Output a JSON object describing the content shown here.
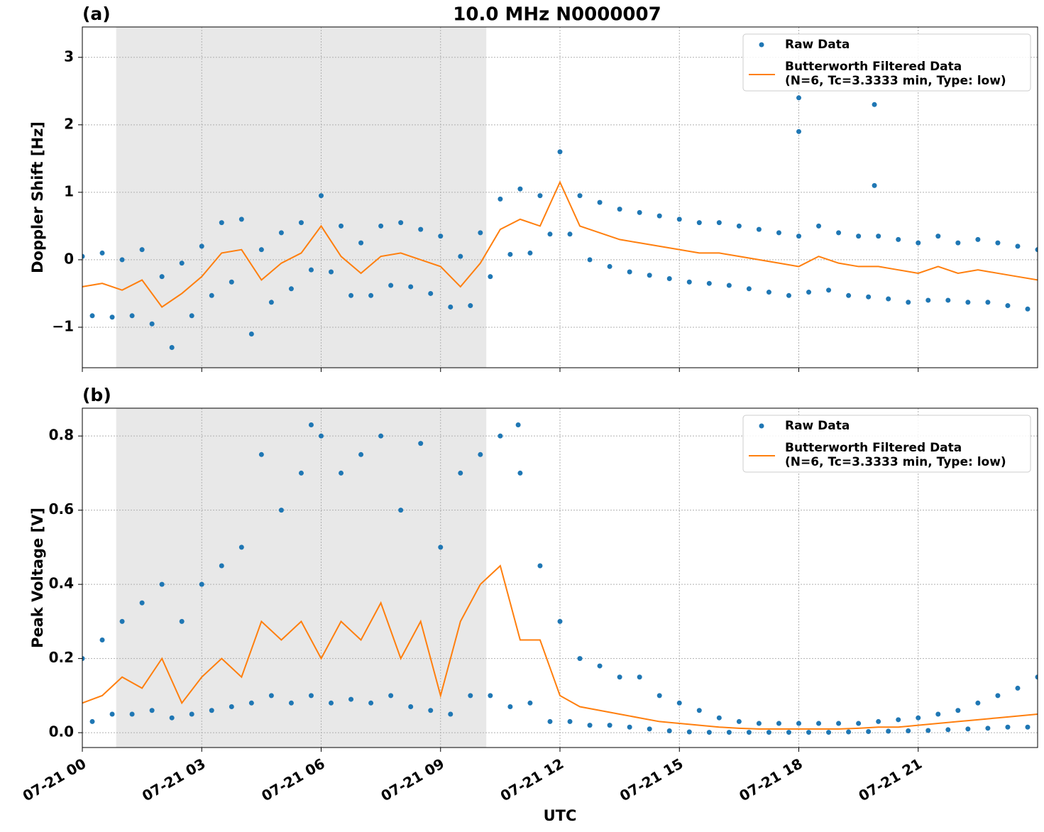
{
  "chart_data": [
    {
      "type": "scatter",
      "label": "(a)",
      "title": "10.0 MHz N0000007",
      "ylabel": "Doppler Shift [Hz]",
      "xlim": [
        0,
        24
      ],
      "ylim": [
        -1.6,
        3.45
      ],
      "yticks": [
        {
          "value": -1,
          "label": "−1"
        },
        0,
        1,
        2,
        3
      ],
      "grid": true,
      "legend": "upper right",
      "shade": [
        0.85,
        10.15
      ],
      "shade_color": "#e8e8e8",
      "legend_note": "(N=6, Tc=3.3333 min, Type: low)",
      "series": [
        {
          "name": "Raw Data",
          "kind": "scatter",
          "color": "#1f77b4",
          "x": [
            0,
            0.25,
            0.5,
            0.75,
            1,
            1.25,
            1.5,
            1.75,
            2,
            2.25,
            2.5,
            2.75,
            3,
            3.25,
            3.5,
            3.75,
            4,
            4.25,
            4.5,
            4.75,
            5,
            5.25,
            5.5,
            5.75,
            6,
            6.25,
            6.5,
            6.75,
            7,
            7.25,
            7.5,
            7.75,
            8,
            8.25,
            8.5,
            8.75,
            9,
            9.25,
            9.5,
            9.75,
            10,
            10.25,
            10.5,
            10.75,
            11,
            11.25,
            11.5,
            11.75,
            12,
            12.25,
            12.5,
            12.75,
            13,
            13.25,
            13.5,
            13.75,
            14,
            14.25,
            14.5,
            14.75,
            15,
            15.25,
            15.5,
            15.75,
            16,
            16.25,
            16.5,
            16.75,
            17,
            17.25,
            17.5,
            17.75,
            18,
            18.25,
            18.5,
            18.75,
            19,
            19.25,
            19.5,
            19.75,
            20,
            20.25,
            20.5,
            20.75,
            21,
            21.25,
            21.5,
            21.75,
            22,
            22.25,
            22.5,
            22.75,
            23,
            23.25,
            23.5,
            23.75,
            24,
            18,
            18,
            19.9,
            19.9
          ],
          "values": [
            0.05,
            -0.83,
            0.1,
            -0.85,
            0.0,
            -0.83,
            0.15,
            -0.95,
            -0.25,
            -1.3,
            -0.05,
            -0.83,
            0.2,
            -0.53,
            0.55,
            -0.33,
            0.6,
            -1.1,
            0.15,
            -0.63,
            0.4,
            -0.43,
            0.55,
            -0.15,
            0.95,
            -0.18,
            0.5,
            -0.53,
            0.25,
            -0.53,
            0.5,
            -0.38,
            0.55,
            -0.4,
            0.45,
            -0.5,
            0.35,
            -0.7,
            0.05,
            -0.68,
            0.4,
            -0.25,
            0.9,
            0.08,
            1.05,
            0.1,
            0.95,
            0.38,
            1.6,
            0.38,
            0.95,
            0.0,
            0.85,
            -0.1,
            0.75,
            -0.18,
            0.7,
            -0.23,
            0.65,
            -0.28,
            0.6,
            -0.33,
            0.55,
            -0.35,
            0.55,
            -0.38,
            0.5,
            -0.43,
            0.45,
            -0.48,
            0.4,
            -0.53,
            0.35,
            -0.48,
            0.5,
            -0.45,
            0.4,
            -0.53,
            0.35,
            -0.55,
            0.35,
            -0.58,
            0.3,
            -0.63,
            0.25,
            -0.6,
            0.35,
            -0.6,
            0.25,
            -0.63,
            0.3,
            -0.63,
            0.25,
            -0.68,
            0.2,
            -0.73,
            0.15,
            2.4,
            1.9,
            2.3,
            1.1
          ]
        },
        {
          "name": "Butterworth Filtered Data",
          "kind": "line",
          "color": "#ff7f0e",
          "x": [
            0,
            0.5,
            1,
            1.5,
            2,
            2.5,
            3,
            3.5,
            4,
            4.5,
            5,
            5.5,
            6,
            6.5,
            7,
            7.5,
            8,
            8.5,
            9,
            9.5,
            10,
            10.5,
            11,
            11.5,
            12,
            12.5,
            13,
            13.5,
            14,
            14.5,
            15,
            15.5,
            16,
            16.5,
            17,
            17.5,
            18,
            18.5,
            19,
            19.5,
            20,
            20.5,
            21,
            21.5,
            22,
            22.5,
            23,
            23.5,
            24
          ],
          "values": [
            -0.4,
            -0.35,
            -0.45,
            -0.3,
            -0.7,
            -0.5,
            -0.25,
            0.1,
            0.15,
            -0.3,
            -0.05,
            0.1,
            0.5,
            0.05,
            -0.2,
            0.05,
            0.1,
            0.0,
            -0.1,
            -0.4,
            -0.05,
            0.45,
            0.6,
            0.5,
            1.15,
            0.5,
            0.4,
            0.3,
            0.25,
            0.2,
            0.15,
            0.1,
            0.1,
            0.05,
            0.0,
            -0.05,
            -0.1,
            0.05,
            -0.05,
            -0.1,
            -0.1,
            -0.15,
            -0.2,
            -0.1,
            -0.2,
            -0.15,
            -0.2,
            -0.25,
            -0.3
          ]
        }
      ]
    },
    {
      "type": "scatter",
      "label": "(b)",
      "ylabel": "Peak Voltage [V]",
      "xlabel": "UTC",
      "xlim": [
        0,
        24
      ],
      "ylim": [
        -0.04,
        0.875
      ],
      "xticks": [
        {
          "value": 0,
          "label": "07-21 00"
        },
        {
          "value": 3,
          "label": "07-21 03"
        },
        {
          "value": 6,
          "label": "07-21 06"
        },
        {
          "value": 9,
          "label": "07-21 09"
        },
        {
          "value": 12,
          "label": "07-21 12"
        },
        {
          "value": 15,
          "label": "07-21 15"
        },
        {
          "value": 18,
          "label": "07-21 18"
        },
        {
          "value": 21,
          "label": "07-21 21"
        }
      ],
      "yticks": [
        {
          "value": 0,
          "label": "0.0"
        },
        0.2,
        0.4,
        0.6,
        0.8
      ],
      "grid": true,
      "legend": "upper right",
      "shade": [
        0.85,
        10.15
      ],
      "shade_color": "#e8e8e8",
      "legend_note": "(N=6, Tc=3.3333 min, Type: low)",
      "series": [
        {
          "name": "Raw Data",
          "kind": "scatter",
          "color": "#1f77b4",
          "x": [
            0,
            0.25,
            0.5,
            0.75,
            1,
            1.25,
            1.5,
            1.75,
            2,
            2.25,
            2.5,
            2.75,
            3,
            3.25,
            3.5,
            3.75,
            4,
            4.25,
            4.5,
            4.75,
            5,
            5.25,
            5.5,
            5.75,
            6,
            6.25,
            6.5,
            6.75,
            7,
            7.25,
            7.5,
            7.75,
            8,
            8.25,
            8.5,
            8.75,
            9,
            9.25,
            9.5,
            9.75,
            10,
            10.25,
            10.5,
            10.75,
            11,
            11.25,
            11.5,
            11.75,
            12,
            12.25,
            12.5,
            12.75,
            13,
            13.25,
            13.5,
            13.75,
            14,
            14.25,
            14.5,
            14.75,
            15,
            15.25,
            15.5,
            15.75,
            16,
            16.25,
            16.5,
            16.75,
            17,
            17.25,
            17.5,
            17.75,
            18,
            18.25,
            18.5,
            18.75,
            19,
            19.25,
            19.5,
            19.75,
            20,
            20.25,
            20.5,
            20.75,
            21,
            21.25,
            21.5,
            21.75,
            22,
            22.25,
            22.5,
            22.75,
            23,
            23.25,
            23.5,
            23.75,
            24,
            5.75,
            10.95
          ],
          "values": [
            0.2,
            0.03,
            0.25,
            0.05,
            0.3,
            0.05,
            0.35,
            0.06,
            0.4,
            0.04,
            0.3,
            0.05,
            0.4,
            0.06,
            0.45,
            0.07,
            0.5,
            0.08,
            0.75,
            0.1,
            0.6,
            0.08,
            0.7,
            0.1,
            0.8,
            0.08,
            0.7,
            0.09,
            0.75,
            0.08,
            0.8,
            0.1,
            0.6,
            0.07,
            0.78,
            0.06,
            0.5,
            0.05,
            0.7,
            0.1,
            0.75,
            0.1,
            0.8,
            0.07,
            0.7,
            0.08,
            0.45,
            0.03,
            0.3,
            0.03,
            0.2,
            0.02,
            0.18,
            0.02,
            0.15,
            0.015,
            0.15,
            0.01,
            0.1,
            0.005,
            0.08,
            0.002,
            0.06,
            0.001,
            0.04,
            0.001,
            0.03,
            0.001,
            0.025,
            0.001,
            0.025,
            0.001,
            0.025,
            0.001,
            0.025,
            0.001,
            0.025,
            0.002,
            0.025,
            0.003,
            0.03,
            0.004,
            0.035,
            0.005,
            0.04,
            0.006,
            0.05,
            0.008,
            0.06,
            0.01,
            0.08,
            0.012,
            0.1,
            0.015,
            0.12,
            0.015,
            0.15,
            0.83,
            0.83
          ]
        },
        {
          "name": "Butterworth Filtered Data",
          "kind": "line",
          "color": "#ff7f0e",
          "x": [
            0,
            0.5,
            1,
            1.5,
            2,
            2.5,
            3,
            3.5,
            4,
            4.5,
            5,
            5.5,
            6,
            6.5,
            7,
            7.5,
            8,
            8.5,
            9,
            9.5,
            10,
            10.5,
            11,
            11.5,
            12,
            12.5,
            13,
            13.5,
            14,
            14.5,
            15,
            15.5,
            16,
            16.5,
            17,
            17.5,
            18,
            18.5,
            19,
            19.5,
            20,
            20.5,
            21,
            21.5,
            22,
            22.5,
            23,
            23.5,
            24
          ],
          "values": [
            0.08,
            0.1,
            0.15,
            0.12,
            0.2,
            0.08,
            0.15,
            0.2,
            0.15,
            0.3,
            0.25,
            0.3,
            0.2,
            0.3,
            0.25,
            0.35,
            0.2,
            0.3,
            0.1,
            0.3,
            0.4,
            0.45,
            0.25,
            0.25,
            0.1,
            0.07,
            0.06,
            0.05,
            0.04,
            0.03,
            0.025,
            0.02,
            0.015,
            0.012,
            0.01,
            0.01,
            0.01,
            0.01,
            0.01,
            0.012,
            0.015,
            0.015,
            0.02,
            0.025,
            0.03,
            0.035,
            0.04,
            0.045,
            0.05
          ]
        }
      ]
    }
  ]
}
